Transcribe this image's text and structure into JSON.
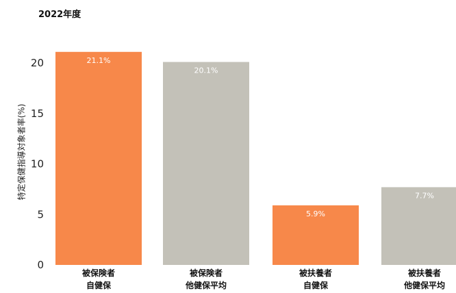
{
  "chart_data": {
    "type": "bar",
    "title": "2022年度",
    "ylabel": "特定保健指導対象者率(%)",
    "xlabel": "",
    "ylim": [
      0,
      21
    ],
    "yticks": [
      0,
      5,
      10,
      15,
      20
    ],
    "grid": false,
    "legend": "none",
    "categories": [
      [
        "被保険者",
        "自健保"
      ],
      [
        "被保険者",
        "他健保平均"
      ],
      [
        "被扶養者",
        "自健保"
      ],
      [
        "被扶養者",
        "他健保平均"
      ]
    ],
    "values": [
      21.1,
      20.1,
      5.9,
      7.7
    ],
    "value_labels": [
      "21.1%",
      "20.1%",
      "5.9%",
      "7.7%"
    ],
    "colors": [
      "#f7884a",
      "#c3c1b8",
      "#f7884a",
      "#c3c1b8"
    ]
  }
}
